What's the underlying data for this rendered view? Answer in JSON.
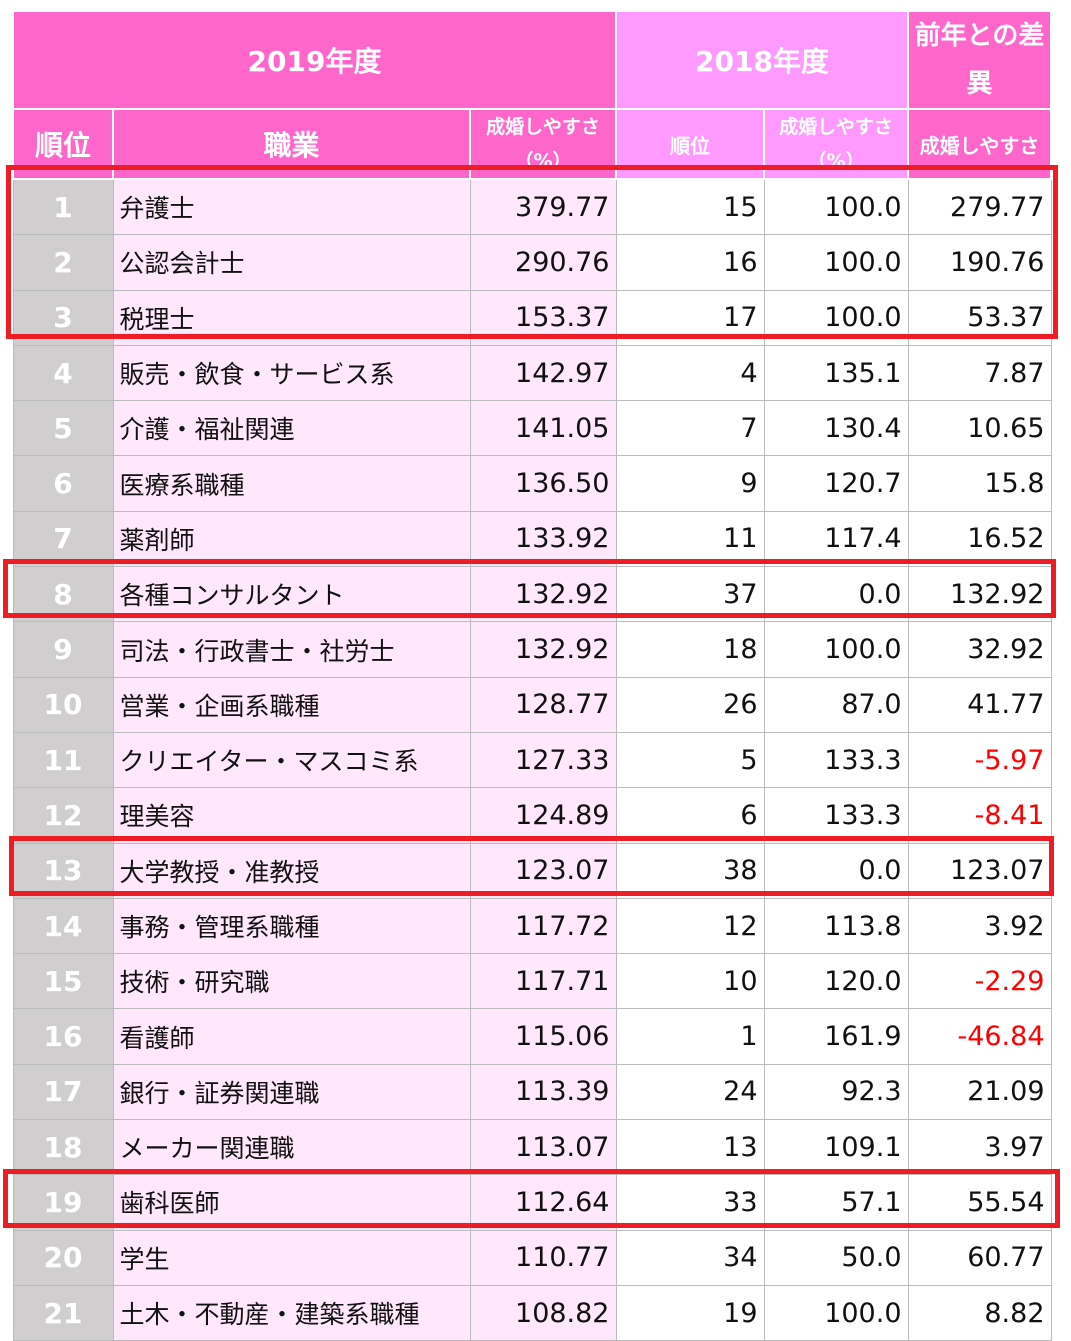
{
  "header": {
    "year2019": "2019年度",
    "year2018": "2018年度",
    "diff": "前年との差異",
    "rank": "順位",
    "job": "職業",
    "ease_pct": "成婚しやすさ（%）",
    "rank2018": "順位",
    "ease_pct2018": "成婚しやすさ（%）",
    "diff_ease": "成婚しやすさ"
  },
  "colors": {
    "header_dark": "#ff66cc",
    "header_light": "#ff99ff",
    "row_pink": "#ffe8fc",
    "rank_gray": "#d0cece",
    "highlight": "#ee1c25",
    "negative": "#ff0000"
  },
  "highlighted_ranks": [
    1,
    2,
    3,
    8,
    13,
    19
  ],
  "rows": [
    {
      "rank": "1",
      "job": "弁護士",
      "ease2019": "379.77",
      "rank2018": "15",
      "ease2018": "100.0",
      "diff": "279.77"
    },
    {
      "rank": "2",
      "job": "公認会計士",
      "ease2019": "290.76",
      "rank2018": "16",
      "ease2018": "100.0",
      "diff": "190.76"
    },
    {
      "rank": "3",
      "job": "税理士",
      "ease2019": "153.37",
      "rank2018": "17",
      "ease2018": "100.0",
      "diff": "53.37"
    },
    {
      "rank": "4",
      "job": "販売・飲食・サービス系",
      "ease2019": "142.97",
      "rank2018": "4",
      "ease2018": "135.1",
      "diff": "7.87"
    },
    {
      "rank": "5",
      "job": "介護・福祉関連",
      "ease2019": "141.05",
      "rank2018": "7",
      "ease2018": "130.4",
      "diff": "10.65"
    },
    {
      "rank": "6",
      "job": "医療系職種",
      "ease2019": "136.50",
      "rank2018": "9",
      "ease2018": "120.7",
      "diff": "15.8"
    },
    {
      "rank": "7",
      "job": "薬剤師",
      "ease2019": "133.92",
      "rank2018": "11",
      "ease2018": "117.4",
      "diff": "16.52"
    },
    {
      "rank": "8",
      "job": "各種コンサルタント",
      "ease2019": "132.92",
      "rank2018": "37",
      "ease2018": "0.0",
      "diff": "132.92"
    },
    {
      "rank": "9",
      "job": "司法・行政書士・社労士",
      "ease2019": "132.92",
      "rank2018": "18",
      "ease2018": "100.0",
      "diff": "32.92"
    },
    {
      "rank": "10",
      "job": "営業・企画系職種",
      "ease2019": "128.77",
      "rank2018": "26",
      "ease2018": "87.0",
      "diff": "41.77"
    },
    {
      "rank": "11",
      "job": "クリエイター・マスコミ系",
      "ease2019": "127.33",
      "rank2018": "5",
      "ease2018": "133.3",
      "diff": "-5.97"
    },
    {
      "rank": "12",
      "job": "理美容",
      "ease2019": "124.89",
      "rank2018": "6",
      "ease2018": "133.3",
      "diff": "-8.41"
    },
    {
      "rank": "13",
      "job": "大学教授・准教授",
      "ease2019": "123.07",
      "rank2018": "38",
      "ease2018": "0.0",
      "diff": "123.07"
    },
    {
      "rank": "14",
      "job": "事務・管理系職種",
      "ease2019": "117.72",
      "rank2018": "12",
      "ease2018": "113.8",
      "diff": "3.92"
    },
    {
      "rank": "15",
      "job": "技術・研究職",
      "ease2019": "117.71",
      "rank2018": "10",
      "ease2018": "120.0",
      "diff": "-2.29"
    },
    {
      "rank": "16",
      "job": "看護師",
      "ease2019": "115.06",
      "rank2018": "1",
      "ease2018": "161.9",
      "diff": "-46.84"
    },
    {
      "rank": "17",
      "job": "銀行・証券関連職",
      "ease2019": "113.39",
      "rank2018": "24",
      "ease2018": "92.3",
      "diff": "21.09"
    },
    {
      "rank": "18",
      "job": "メーカー関連職",
      "ease2019": "113.07",
      "rank2018": "13",
      "ease2018": "109.1",
      "diff": "3.97"
    },
    {
      "rank": "19",
      "job": "歯科医師",
      "ease2019": "112.64",
      "rank2018": "33",
      "ease2018": "57.1",
      "diff": "55.54"
    },
    {
      "rank": "20",
      "job": "学生",
      "ease2019": "110.77",
      "rank2018": "34",
      "ease2018": "50.0",
      "diff": "60.77"
    },
    {
      "rank": "21",
      "job": "土木・不動産・建築系職種",
      "ease2019": "108.82",
      "rank2018": "19",
      "ease2018": "100.0",
      "diff": "8.82"
    }
  ]
}
